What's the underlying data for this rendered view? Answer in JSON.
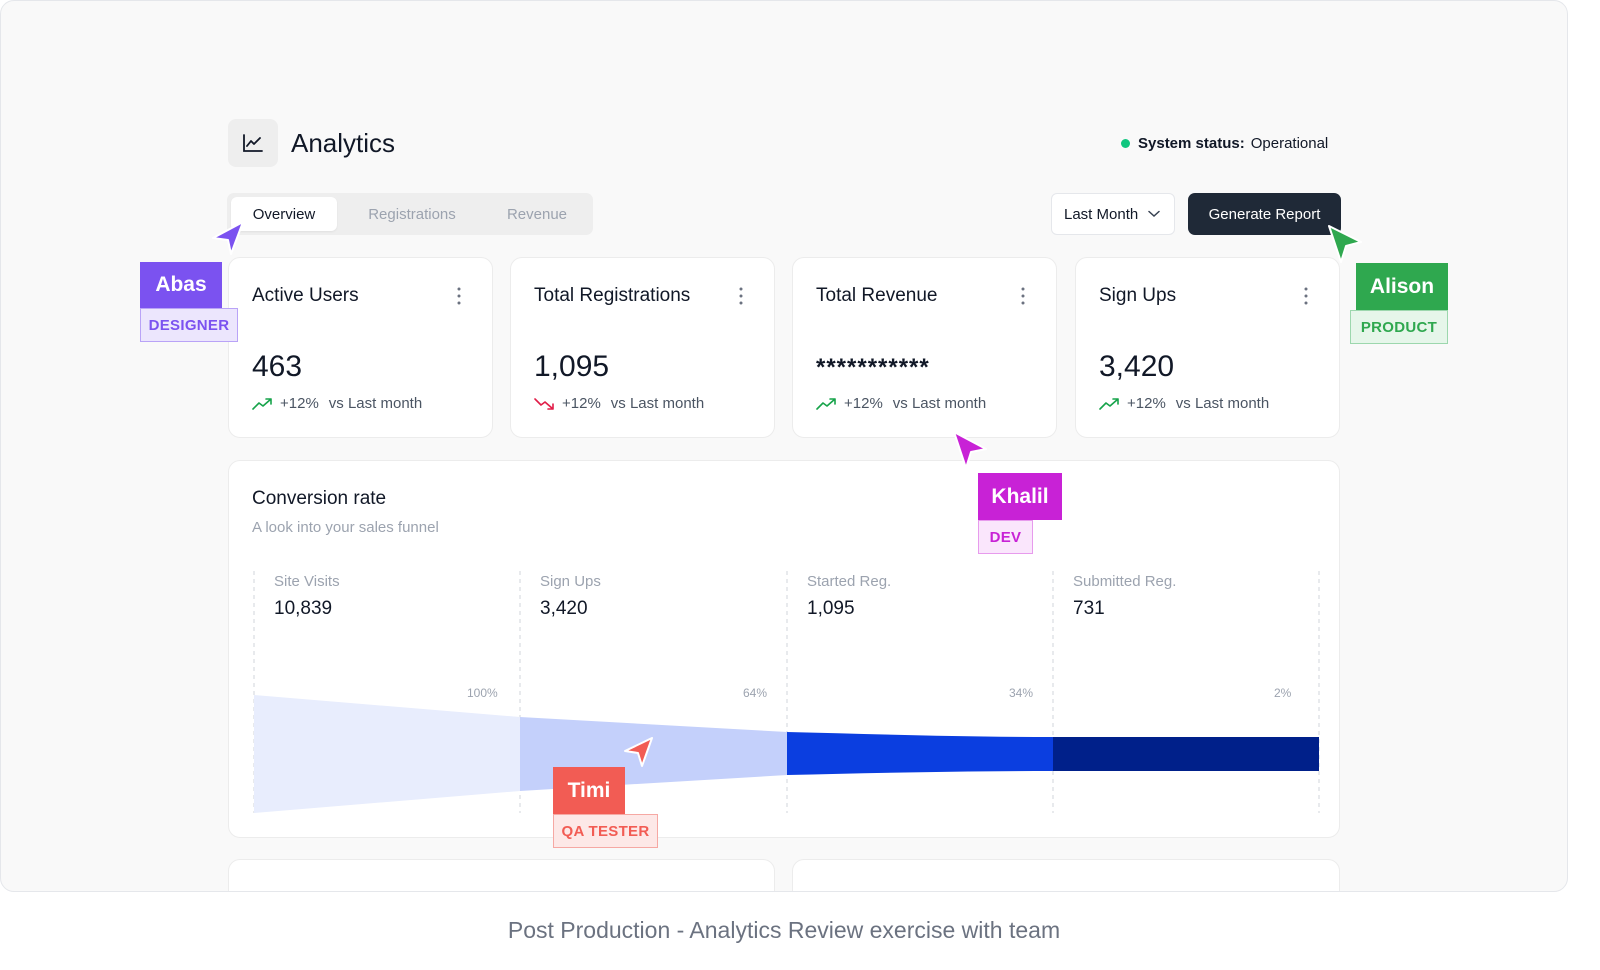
{
  "header": {
    "title": "Analytics",
    "icon": "line-chart-icon"
  },
  "system_status": {
    "label": "System status:",
    "value": "Operational",
    "color": "#10c67f"
  },
  "tabs": [
    {
      "label": "Overview",
      "active": true
    },
    {
      "label": "Registrations",
      "active": false
    },
    {
      "label": "Revenue",
      "active": false
    }
  ],
  "period_select": {
    "value": "Last Month"
  },
  "generate_button": {
    "label": "Generate Report"
  },
  "cards": [
    {
      "title": "Active Users",
      "value": "463",
      "delta": "+12%",
      "compare": "vs Last month",
      "trend": "up"
    },
    {
      "title": "Total Registrations",
      "value": "1,095",
      "delta": "+12%",
      "compare": "vs Last month",
      "trend": "down"
    },
    {
      "title": "Total Revenue",
      "value": "***********",
      "delta": "+12%",
      "compare": "vs Last month",
      "trend": "up"
    },
    {
      "title": "Sign Ups",
      "value": "3,420",
      "delta": "+12%",
      "compare": "vs Last month",
      "trend": "up"
    }
  ],
  "conversion": {
    "title": "Conversion rate",
    "subtitle": "A look into your sales funnel",
    "stages": [
      {
        "label": "Site Visits",
        "value": "10,839",
        "pct": "100%"
      },
      {
        "label": "Sign Ups",
        "value": "3,420",
        "pct": "64%"
      },
      {
        "label": "Started Reg.",
        "value": "1,095",
        "pct": "34%"
      },
      {
        "label": "Submitted Reg.",
        "value": "731",
        "pct": "2%"
      }
    ],
    "colors": [
      "#e8edfd",
      "#c4d0fb",
      "#0b3ee0",
      "#00208a"
    ]
  },
  "collaborators": [
    {
      "name": "Abas",
      "role": "DESIGNER",
      "color": "#7b52f0",
      "light": "#ece6fd"
    },
    {
      "name": "Alison",
      "role": "PRODUCT",
      "color": "#2fa84f",
      "light": "#e6f6ea"
    },
    {
      "name": "Khalil",
      "role": "DEV",
      "color": "#c822d6",
      "light": "#fae6fc"
    },
    {
      "name": "Timi",
      "role": "QA TESTER",
      "color": "#f25c54",
      "light": "#fde8e7"
    }
  ],
  "caption": "Post Production - Analytics Review exercise with team"
}
